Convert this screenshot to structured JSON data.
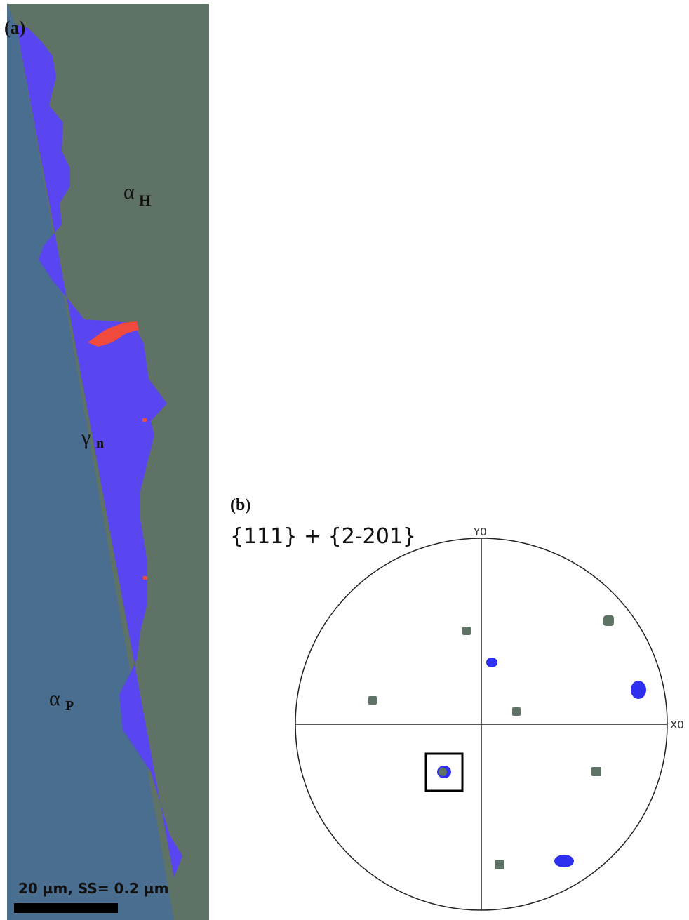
{
  "panel_a": {
    "label": "(a)",
    "phases": [
      {
        "symbol": "α",
        "subscript": "H"
      },
      {
        "symbol": "γ",
        "subscript": "n"
      },
      {
        "symbol": "α",
        "subscript": "P"
      }
    ],
    "scale_bar": "20 µm, SS= 0.2 µm"
  },
  "panel_b": {
    "label": "(b)",
    "title": "{111} + {2-201}",
    "y_axis": "Y0",
    "x_axis": "X0"
  }
}
